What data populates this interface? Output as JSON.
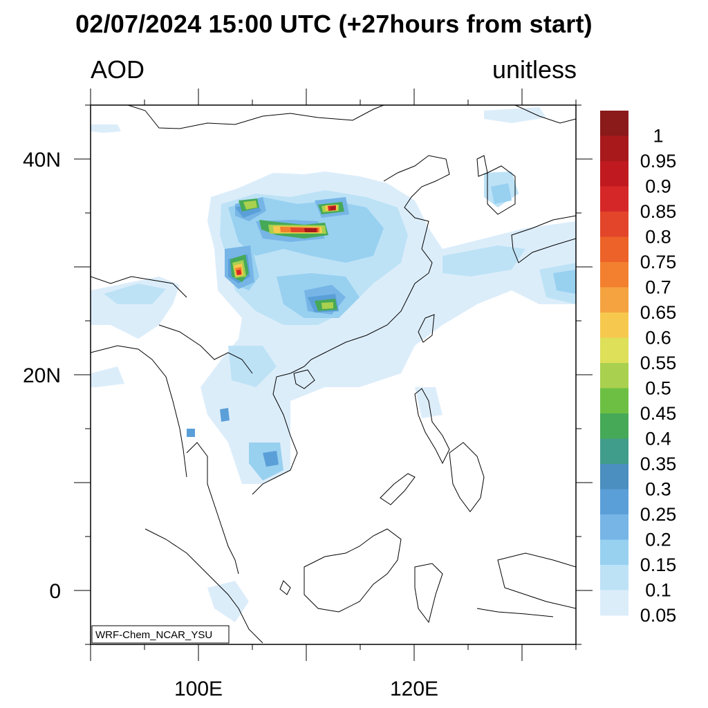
{
  "title": "02/07/2024 15:00 UTC (+27hours from start)",
  "field_label": "AOD",
  "units_label": "unitless",
  "credit": "WRF-Chem_NCAR_YSU",
  "map": {
    "lon_range": [
      90,
      135
    ],
    "lat_range": [
      -5,
      45
    ],
    "lon_ticks": [
      {
        "value": 100,
        "label": "100E"
      },
      {
        "value": 120,
        "label": "120E"
      }
    ],
    "lat_ticks": [
      {
        "value": 0,
        "label": "0"
      },
      {
        "value": 20,
        "label": "20N"
      },
      {
        "value": 40,
        "label": "40N"
      }
    ]
  },
  "colorbar": {
    "labels": [
      "1",
      "0.95",
      "0.9",
      "0.85",
      "0.8",
      "0.75",
      "0.7",
      "0.65",
      "0.6",
      "0.55",
      "0.5",
      "0.45",
      "0.4",
      "0.35",
      "0.3",
      "0.25",
      "0.2",
      "0.15",
      "0.1",
      "0.05"
    ],
    "colors": [
      "#8b1a1a",
      "#a8191c",
      "#c0191f",
      "#d62728",
      "#e2452a",
      "#ec6228",
      "#f2802f",
      "#f5a340",
      "#f6c94e",
      "#dde058",
      "#a9d04e",
      "#6dbf44",
      "#46a958",
      "#419d8b",
      "#4a8fbf",
      "#5b9fd8",
      "#76b5e6",
      "#98d0f0",
      "#bde2f6",
      "#dcedfa"
    ]
  },
  "aod_regions": [
    {
      "level": 0.1,
      "lon": [
        104,
        113
      ],
      "lat": [
        30.5,
        38
      ]
    },
    {
      "level": 0.15,
      "lon": [
        105,
        112
      ],
      "lat": [
        31.5,
        37
      ]
    },
    {
      "level": 0.25,
      "lon": [
        105.5,
        107
      ],
      "lat": [
        34,
        37
      ]
    },
    {
      "level": 0.45,
      "lon": [
        107,
        111
      ],
      "lat": [
        34.3,
        35.2
      ]
    },
    {
      "level": 0.75,
      "lon": [
        108.5,
        110.5
      ],
      "lat": [
        34.4,
        35
      ]
    },
    {
      "level": 0.95,
      "lon": [
        109.5,
        110.5
      ],
      "lat": [
        34.5,
        35
      ]
    },
    {
      "level": 0.5,
      "lon": [
        112,
        113.2
      ],
      "lat": [
        35.6,
        36.8
      ]
    },
    {
      "level": 0.95,
      "lon": [
        112.5,
        113
      ],
      "lat": [
        35.8,
        36.4
      ]
    },
    {
      "level": 0.55,
      "lon": [
        103.2,
        105
      ],
      "lat": [
        29,
        31.2
      ]
    },
    {
      "level": 0.9,
      "lon": [
        103.8,
        104.4
      ],
      "lat": [
        29.3,
        30
      ]
    },
    {
      "level": 0.3,
      "lon": [
        108,
        112
      ],
      "lat": [
        25.5,
        28
      ]
    },
    {
      "level": 0.4,
      "lon": [
        110,
        111.5
      ],
      "lat": [
        26.3,
        27.2
      ]
    },
    {
      "level": 0.1,
      "lon": [
        114,
        135
      ],
      "lat": [
        27,
        33
      ]
    },
    {
      "level": 0.15,
      "lon": [
        131,
        135
      ],
      "lat": [
        28,
        30
      ]
    },
    {
      "level": 0.1,
      "lon": [
        100,
        107
      ],
      "lat": [
        10,
        22
      ]
    },
    {
      "level": 0.2,
      "lon": [
        105,
        107
      ],
      "lat": [
        11,
        13
      ]
    },
    {
      "level": 0.1,
      "lon": [
        90,
        103
      ],
      "lat": [
        26,
        28
      ]
    }
  ]
}
